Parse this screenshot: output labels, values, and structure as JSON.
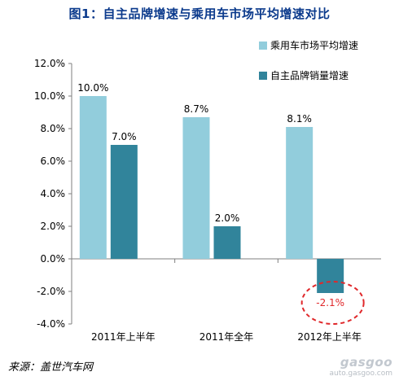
{
  "title": "图1：自主品牌增速与乘用车市场平均增速对比",
  "source": "来源：盖世汽车网",
  "watermark": {
    "logo": "gasgoo",
    "url": "auto.gasgoo.com"
  },
  "colors": {
    "series1": "#92cddc",
    "series2": "#31849b",
    "highlight": "#e0282b",
    "title": "#0b3a8c"
  },
  "chart_data": {
    "type": "bar",
    "categories": [
      "2011年上半年",
      "2011年全年",
      "2012年上半年"
    ],
    "series": [
      {
        "name": "乘用车市场平均增速",
        "values": [
          10.0,
          8.7,
          8.1
        ],
        "labels": [
          "10.0%",
          "8.7%",
          "8.1%"
        ]
      },
      {
        "name": "自主品牌销量增速",
        "values": [
          7.0,
          2.0,
          -2.1
        ],
        "labels": [
          "7.0%",
          "2.0%",
          "-2.1%"
        ]
      }
    ],
    "yticks": [
      "-4.0%",
      "-2.0%",
      "0.0%",
      "2.0%",
      "4.0%",
      "6.0%",
      "8.0%",
      "10.0%",
      "12.0%"
    ],
    "ylim": [
      -4,
      12
    ],
    "legend_position": "top-right",
    "grid": false,
    "annotation": "red dashed ellipse around 2012年上半年 自主品牌销量增速 (-2.1%)"
  }
}
